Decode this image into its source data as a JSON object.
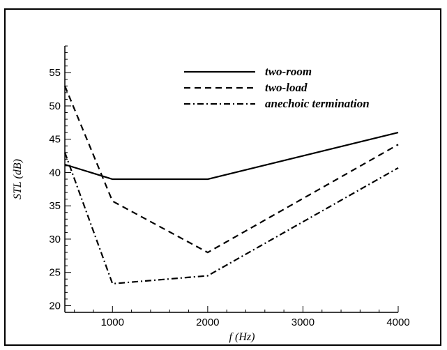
{
  "chart_data": {
    "type": "line",
    "xlabel": "f (Hz)",
    "ylabel": "STL (dB)",
    "xlim": [
      500,
      4000
    ],
    "ylim": [
      19,
      59
    ],
    "xticks": [
      1000,
      2000,
      3000,
      4000
    ],
    "yticks": [
      20,
      25,
      30,
      35,
      40,
      45,
      50,
      55
    ],
    "grid": false,
    "legend_position": "top-right",
    "series": [
      {
        "name": "two-room",
        "dash": "solid",
        "color": "#000000",
        "x": [
          500,
          1000,
          2000,
          4000
        ],
        "y": [
          41.2,
          39,
          39,
          46
        ]
      },
      {
        "name": "two-load",
        "dash": "dashed",
        "color": "#000000",
        "x": [
          500,
          1000,
          2000,
          4000
        ],
        "y": [
          53,
          35.7,
          28,
          44.2
        ]
      },
      {
        "name": "anechoic termination",
        "dash": "dashdot",
        "color": "#000000",
        "x": [
          500,
          1000,
          2000,
          4000
        ],
        "y": [
          43,
          23.3,
          24.5,
          40.7
        ]
      }
    ]
  }
}
